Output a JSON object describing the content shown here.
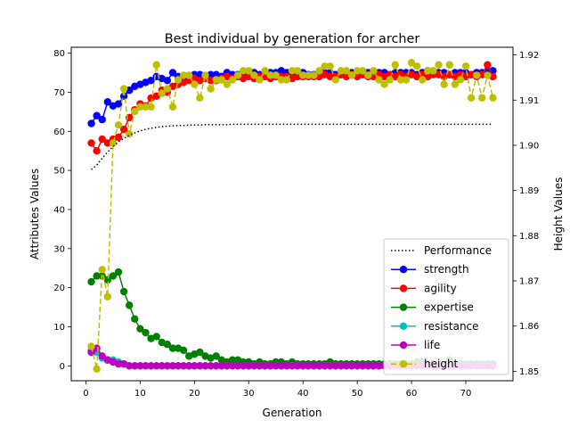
{
  "chart_data": {
    "type": "line",
    "title": "Best individual by generation for archer",
    "xlabel": "Generation",
    "ylabel": "Attributes Values",
    "y2label": "Height Values",
    "xlim": [
      -2.7,
      78.7
    ],
    "ylim": [
      -3.8,
      81.5
    ],
    "y2lim": [
      1.8479,
      1.9217
    ],
    "xticks": [
      0,
      10,
      20,
      30,
      40,
      50,
      60,
      70
    ],
    "yticks": [
      0,
      10,
      20,
      30,
      40,
      50,
      60,
      70,
      80
    ],
    "y2ticks": [
      "1.85",
      "1.86",
      "1.87",
      "1.88",
      "1.89",
      "1.90",
      "1.91",
      "1.92"
    ],
    "legend_position": "lower right",
    "series": [
      {
        "name": "Performance",
        "axis": "left",
        "color": "#000000",
        "linestyle": "dotted",
        "marker": false,
        "x": [
          1,
          2,
          3,
          4,
          5,
          6,
          7,
          8,
          9,
          10,
          11,
          12,
          13,
          14,
          15,
          16,
          17,
          18,
          19,
          20,
          21,
          22,
          23,
          24,
          25,
          26,
          27,
          28,
          29,
          30,
          31,
          32,
          33,
          34,
          35,
          36,
          37,
          38,
          39,
          40,
          41,
          42,
          43,
          44,
          45,
          46,
          47,
          48,
          49,
          50,
          51,
          52,
          53,
          54,
          55,
          56,
          57,
          58,
          59,
          60,
          61,
          62,
          63,
          64,
          65,
          66,
          67,
          68,
          69,
          70,
          71,
          72,
          73,
          74,
          75
        ],
        "y": [
          50.2,
          51.4,
          53.1,
          54.7,
          56.1,
          57.3,
          58.2,
          59.0,
          59.6,
          60.1,
          60.5,
          60.8,
          61.0,
          61.2,
          61.3,
          61.4,
          61.5,
          61.5,
          61.6,
          61.6,
          61.6,
          61.7,
          61.7,
          61.7,
          61.7,
          61.7,
          61.8,
          61.8,
          61.8,
          61.8,
          61.8,
          61.8,
          61.8,
          61.8,
          61.8,
          61.8,
          61.8,
          61.8,
          61.8,
          61.8,
          61.8,
          61.8,
          61.8,
          61.8,
          61.8,
          61.8,
          61.8,
          61.8,
          61.8,
          61.8,
          61.8,
          61.8,
          61.8,
          61.8,
          61.8,
          61.8,
          61.8,
          61.8,
          61.8,
          61.8,
          61.8,
          61.8,
          61.8,
          61.8,
          61.8,
          61.8,
          61.8,
          61.8,
          61.8,
          61.8,
          61.8,
          61.8,
          61.8,
          61.8,
          61.8
        ]
      },
      {
        "name": "strength",
        "axis": "left",
        "color": "#0000ff",
        "linestyle": "solid",
        "marker": true,
        "x": [
          1,
          2,
          3,
          4,
          5,
          6,
          7,
          8,
          9,
          10,
          11,
          12,
          13,
          14,
          15,
          16,
          17,
          18,
          19,
          20,
          21,
          22,
          23,
          24,
          25,
          26,
          27,
          28,
          29,
          30,
          31,
          32,
          33,
          34,
          35,
          36,
          37,
          38,
          39,
          40,
          41,
          42,
          43,
          44,
          45,
          46,
          47,
          48,
          49,
          50,
          51,
          52,
          53,
          54,
          55,
          56,
          57,
          58,
          59,
          60,
          61,
          62,
          63,
          64,
          65,
          66,
          67,
          68,
          69,
          70,
          71,
          72,
          73,
          74,
          75
        ],
        "y": [
          62.0,
          64.0,
          63.0,
          67.5,
          66.5,
          67.0,
          69.0,
          70.5,
          71.5,
          72.0,
          72.5,
          73.0,
          74.0,
          73.5,
          73.0,
          75.0,
          74.0,
          73.5,
          74.0,
          74.5,
          74.5,
          74.0,
          74.5,
          74.5,
          74.0,
          75.0,
          74.5,
          74.5,
          74.0,
          74.5,
          75.0,
          74.5,
          74.5,
          75.0,
          75.0,
          75.5,
          75.0,
          74.5,
          74.5,
          75.0,
          74.5,
          74.5,
          75.0,
          75.0,
          75.0,
          74.5,
          74.5,
          75.0,
          75.0,
          75.0,
          74.5,
          75.0,
          75.0,
          75.0,
          75.0,
          74.5,
          75.0,
          75.0,
          75.0,
          75.0,
          74.5,
          75.0,
          75.5,
          75.0,
          75.0,
          75.0,
          74.5,
          75.0,
          75.0,
          75.0,
          74.5,
          75.0,
          75.0,
          75.5,
          75.5
        ]
      },
      {
        "name": "agility",
        "axis": "left",
        "color": "#ff0000",
        "linestyle": "solid",
        "marker": true,
        "x": [
          1,
          2,
          3,
          4,
          5,
          6,
          7,
          8,
          9,
          10,
          11,
          12,
          13,
          14,
          15,
          16,
          17,
          18,
          19,
          20,
          21,
          22,
          23,
          24,
          25,
          26,
          27,
          28,
          29,
          30,
          31,
          32,
          33,
          34,
          35,
          36,
          37,
          38,
          39,
          40,
          41,
          42,
          43,
          44,
          45,
          46,
          47,
          48,
          49,
          50,
          51,
          52,
          53,
          54,
          55,
          56,
          57,
          58,
          59,
          60,
          61,
          62,
          63,
          64,
          65,
          66,
          67,
          68,
          69,
          70,
          71,
          72,
          73,
          74,
          75
        ],
        "y": [
          57.0,
          55.0,
          58.0,
          57.0,
          58.0,
          58.5,
          60.5,
          63.5,
          65.5,
          67.0,
          66.5,
          68.5,
          69.0,
          70.5,
          70.0,
          71.5,
          72.0,
          72.5,
          73.0,
          73.5,
          73.0,
          73.5,
          73.0,
          73.0,
          73.5,
          74.0,
          73.5,
          74.0,
          73.5,
          74.0,
          73.5,
          74.0,
          74.0,
          73.5,
          74.0,
          74.0,
          74.0,
          73.5,
          74.0,
          74.0,
          74.0,
          74.0,
          74.0,
          74.5,
          74.0,
          74.0,
          74.5,
          74.0,
          74.5,
          74.0,
          74.5,
          74.0,
          74.0,
          74.5,
          74.0,
          74.5,
          74.0,
          74.5,
          74.0,
          74.5,
          74.0,
          74.5,
          74.0,
          74.5,
          74.5,
          74.0,
          74.5,
          74.0,
          74.5,
          74.0,
          74.5,
          74.0,
          74.5,
          77.0,
          74.0
        ]
      },
      {
        "name": "expertise",
        "axis": "left",
        "color": "#008000",
        "linestyle": "solid",
        "marker": true,
        "x": [
          1,
          2,
          3,
          4,
          5,
          6,
          7,
          8,
          9,
          10,
          11,
          12,
          13,
          14,
          15,
          16,
          17,
          18,
          19,
          20,
          21,
          22,
          23,
          24,
          25,
          26,
          27,
          28,
          29,
          30,
          31,
          32,
          33,
          34,
          35,
          36,
          37,
          38,
          39,
          40,
          41,
          42,
          43,
          44,
          45,
          46,
          47,
          48,
          49,
          50,
          51,
          52,
          53,
          54,
          55,
          56,
          57,
          58,
          59,
          60,
          61,
          62,
          63,
          64,
          65,
          66,
          67,
          68,
          69,
          70,
          71,
          72,
          73,
          74,
          75
        ],
        "y": [
          21.5,
          23.0,
          23.0,
          22.0,
          23.0,
          24.0,
          19.0,
          15.5,
          12.0,
          9.5,
          8.5,
          7.0,
          7.5,
          6.0,
          5.5,
          4.5,
          4.5,
          4.0,
          2.5,
          3.0,
          3.5,
          2.5,
          2.0,
          2.5,
          1.5,
          1.0,
          1.5,
          1.5,
          1.0,
          1.0,
          0.5,
          1.0,
          0.5,
          0.5,
          1.0,
          1.0,
          0.5,
          1.0,
          0.5,
          0.5,
          0.5,
          0.5,
          0.5,
          0.5,
          1.0,
          0.5,
          0.5,
          0.5,
          0.5,
          0.5,
          0.5,
          0.5,
          0.5,
          0.5,
          0.5,
          0.5,
          0.5,
          0.5,
          0.5,
          0.5,
          1.0,
          1.0,
          0.5,
          0.5,
          0.5,
          0.5,
          1.5,
          0.5,
          0.5,
          0.5,
          0.5,
          0.5,
          0.5,
          0.5,
          0.5
        ]
      },
      {
        "name": "resistance",
        "axis": "left",
        "color": "#00bfbf",
        "linestyle": "solid",
        "marker": true,
        "x": [
          1,
          2,
          3,
          4,
          5,
          6,
          7,
          8,
          9,
          10,
          11,
          12,
          13,
          14,
          15,
          16,
          17,
          18,
          19,
          20,
          21,
          22,
          23,
          24,
          25,
          26,
          27,
          28,
          29,
          30,
          31,
          32,
          33,
          34,
          35,
          36,
          37,
          38,
          39,
          40,
          41,
          42,
          43,
          44,
          45,
          46,
          47,
          48,
          49,
          50,
          51,
          52,
          53,
          54,
          55,
          56,
          57,
          58,
          59,
          60,
          61,
          62,
          63,
          64,
          65,
          66,
          67,
          68,
          69,
          70,
          71,
          72,
          73,
          74,
          75
        ],
        "y": [
          4.0,
          3.5,
          2.0,
          1.5,
          1.5,
          1.0,
          0.5,
          0.0,
          0.0,
          0.0,
          0.0,
          0.0,
          0.0,
          0.0,
          0.0,
          0.0,
          0.0,
          0.0,
          0.0,
          0.0,
          0.0,
          0.0,
          0.0,
          0.0,
          0.0,
          0.0,
          0.0,
          0.0,
          0.0,
          0.0,
          0.0,
          0.0,
          0.0,
          0.0,
          0.0,
          0.0,
          0.0,
          0.0,
          0.0,
          0.0,
          0.0,
          0.0,
          0.0,
          0.0,
          0.0,
          0.0,
          0.0,
          0.0,
          0.0,
          0.0,
          0.0,
          0.0,
          0.0,
          0.0,
          0.0,
          0.0,
          0.0,
          0.0,
          0.0,
          0.0,
          0.0,
          0.0,
          0.0,
          0.0,
          0.0,
          0.0,
          0.0,
          0.0,
          0.0,
          0.0,
          0.0,
          0.0,
          0.0,
          0.0,
          0.0
        ]
      },
      {
        "name": "life",
        "axis": "left",
        "color": "#bf00bf",
        "linestyle": "solid",
        "marker": true,
        "x": [
          1,
          2,
          3,
          4,
          5,
          6,
          7,
          8,
          9,
          10,
          11,
          12,
          13,
          14,
          15,
          16,
          17,
          18,
          19,
          20,
          21,
          22,
          23,
          24,
          25,
          26,
          27,
          28,
          29,
          30,
          31,
          32,
          33,
          34,
          35,
          36,
          37,
          38,
          39,
          40,
          41,
          42,
          43,
          44,
          45,
          46,
          47,
          48,
          49,
          50,
          51,
          52,
          53,
          54,
          55,
          56,
          57,
          58,
          59,
          60,
          61,
          62,
          63,
          64,
          65,
          66,
          67,
          68,
          69,
          70,
          71,
          72,
          73,
          74,
          75
        ],
        "y": [
          3.5,
          4.5,
          2.5,
          1.5,
          1.0,
          0.5,
          0.5,
          0.0,
          0.0,
          0.0,
          0.0,
          0.0,
          0.0,
          0.0,
          0.0,
          0.0,
          0.0,
          0.0,
          0.0,
          0.0,
          0.0,
          0.0,
          0.0,
          0.0,
          0.0,
          0.0,
          0.0,
          0.0,
          0.0,
          0.0,
          0.0,
          0.0,
          0.0,
          0.0,
          0.0,
          0.0,
          0.0,
          0.0,
          0.0,
          0.0,
          0.0,
          0.0,
          0.0,
          0.0,
          0.0,
          0.0,
          0.0,
          0.0,
          0.0,
          0.0,
          0.0,
          0.0,
          0.0,
          0.0,
          0.0,
          0.0,
          0.0,
          0.0,
          0.0,
          0.0,
          0.0,
          0.0,
          0.0,
          0.0,
          0.0,
          0.0,
          0.0,
          0.0,
          0.0,
          0.0,
          0.0,
          0.0,
          0.0,
          0.0,
          0.0
        ]
      },
      {
        "name": "height",
        "axis": "right",
        "color": "#bfbf00",
        "linestyle": "dashed",
        "marker": true,
        "x": [
          1,
          2,
          3,
          4,
          5,
          6,
          7,
          8,
          9,
          10,
          11,
          12,
          13,
          14,
          15,
          16,
          17,
          18,
          19,
          20,
          21,
          22,
          23,
          24,
          25,
          26,
          27,
          28,
          29,
          30,
          31,
          32,
          33,
          34,
          35,
          36,
          37,
          38,
          39,
          40,
          41,
          42,
          43,
          44,
          45,
          46,
          47,
          48,
          49,
          50,
          51,
          52,
          53,
          54,
          55,
          56,
          57,
          58,
          59,
          60,
          61,
          62,
          63,
          64,
          65,
          66,
          67,
          68,
          69,
          70,
          71,
          72,
          73,
          74,
          75
        ],
        "y": [
          1.8555,
          1.8505,
          1.8725,
          1.8665,
          1.9005,
          1.9045,
          1.9125,
          1.9025,
          1.9075,
          1.9085,
          1.9085,
          1.9085,
          1.9178,
          1.9115,
          1.9125,
          1.9085,
          1.9145,
          1.9155,
          1.9155,
          1.9135,
          1.9105,
          1.9155,
          1.9125,
          1.9145,
          1.9145,
          1.9135,
          1.9145,
          1.9155,
          1.9165,
          1.9165,
          1.9155,
          1.9145,
          1.9165,
          1.9155,
          1.9155,
          1.9145,
          1.9145,
          1.9165,
          1.9165,
          1.9155,
          1.9155,
          1.9155,
          1.9165,
          1.9175,
          1.9175,
          1.9145,
          1.9165,
          1.9165,
          1.9155,
          1.9165,
          1.9165,
          1.9155,
          1.9165,
          1.9145,
          1.9135,
          1.9145,
          1.9178,
          1.9145,
          1.9145,
          1.9183,
          1.9175,
          1.9145,
          1.9165,
          1.9165,
          1.9178,
          1.9135,
          1.9178,
          1.9135,
          1.9145,
          1.9175,
          1.9105,
          1.9155,
          1.9105,
          1.9155,
          1.9105
        ]
      }
    ]
  }
}
